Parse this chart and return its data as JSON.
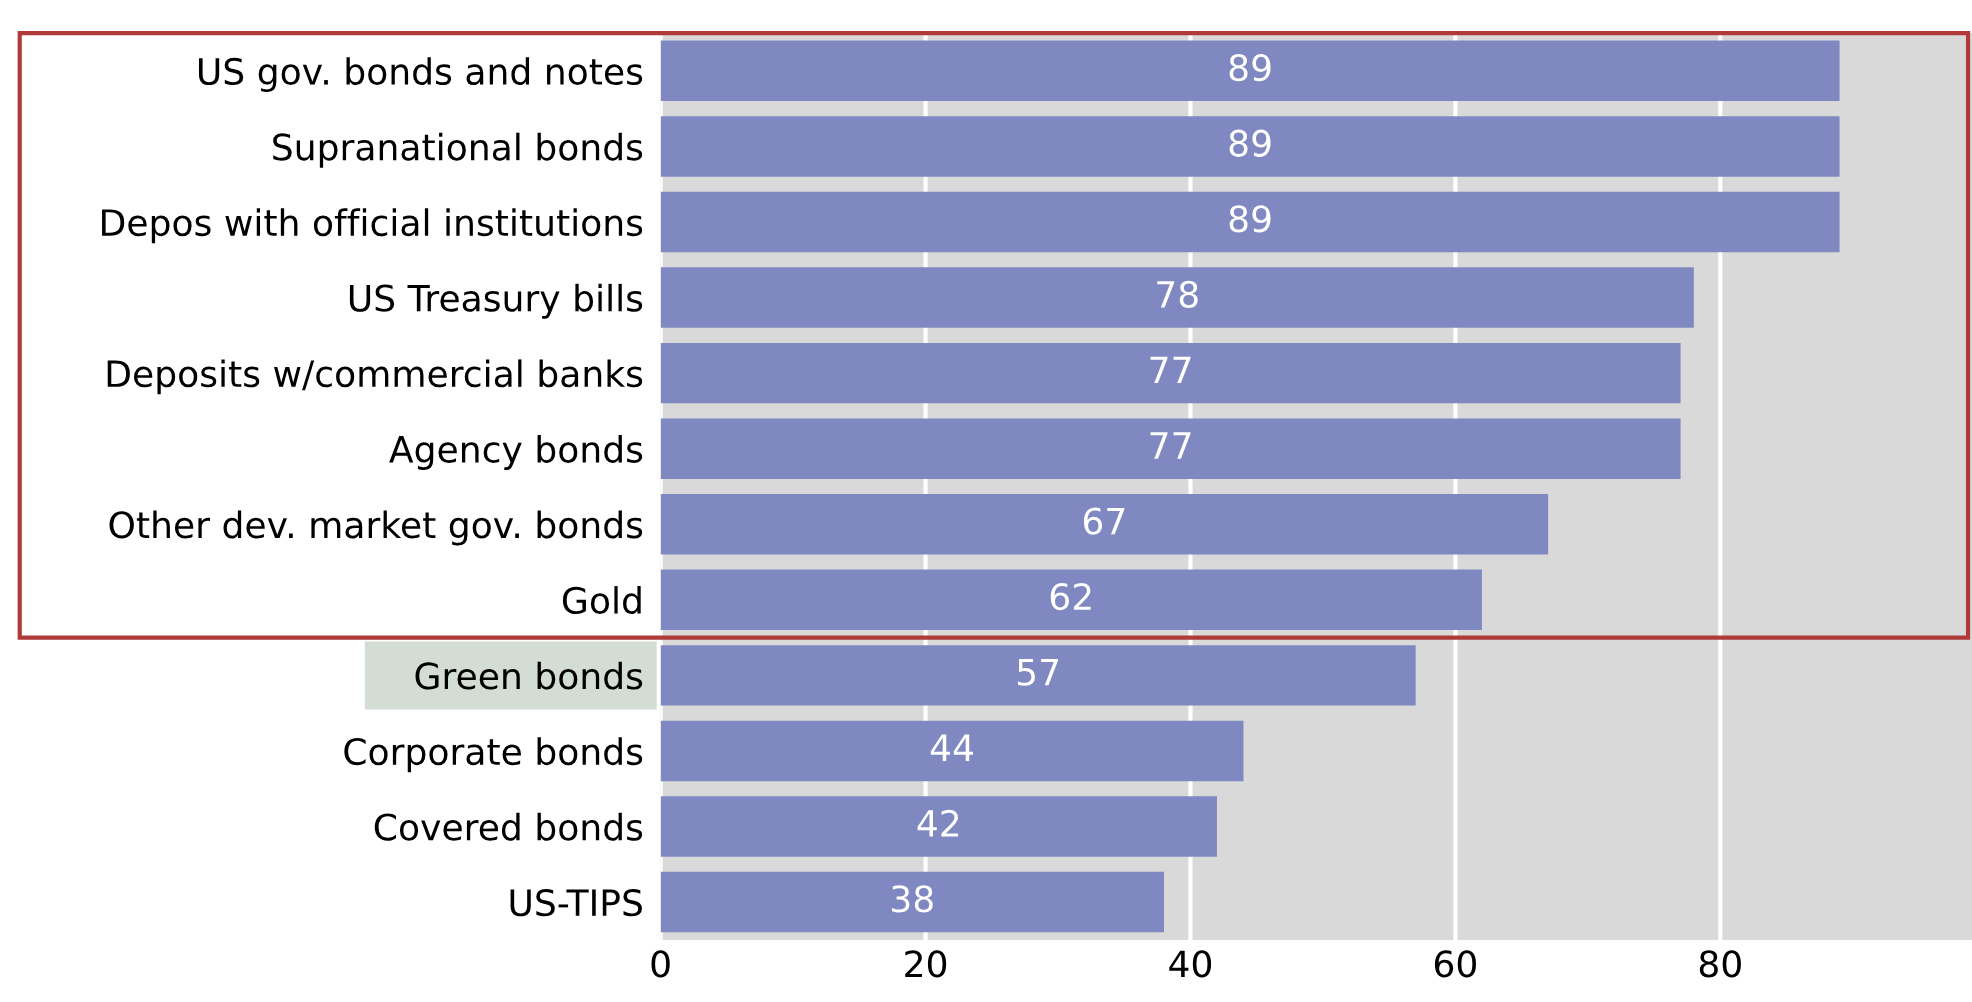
{
  "chart_data": {
    "type": "bar",
    "orientation": "horizontal",
    "categories": [
      "US gov. bonds and notes",
      "Supranational bonds",
      "Depos with official institutions",
      "US Treasury bills",
      "Deposits w/commercial banks",
      "Agency bonds",
      "Other dev. market gov. bonds",
      "Gold",
      "Green bonds",
      "Corporate bonds",
      "Covered bonds",
      "US-TIPS"
    ],
    "values": [
      89,
      89,
      89,
      78,
      77,
      77,
      67,
      62,
      57,
      44,
      42,
      38
    ],
    "color": "#7f88c0",
    "data_labels": true,
    "xlim": [
      0,
      99
    ],
    "xticks": [
      0,
      20,
      40,
      60,
      80
    ],
    "grid": "x"
  }
}
